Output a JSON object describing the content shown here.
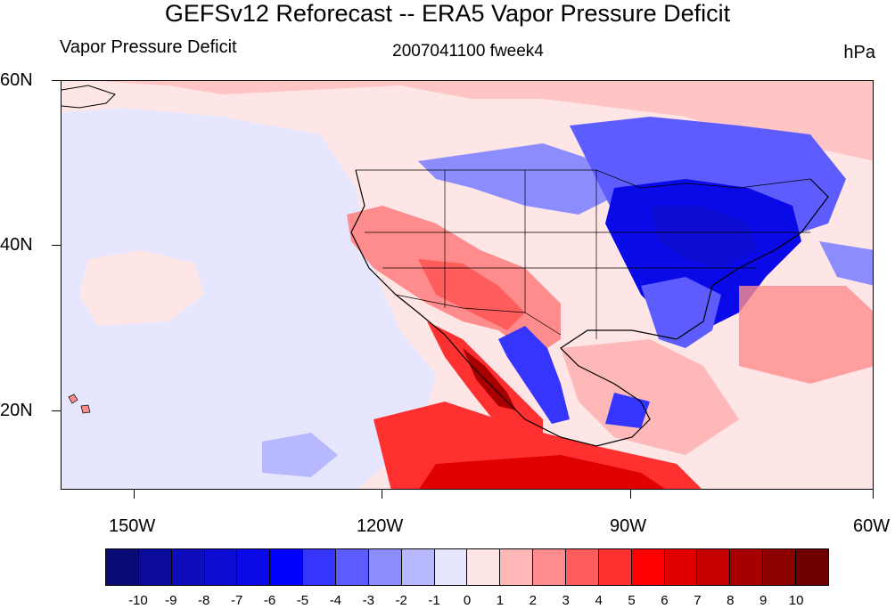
{
  "header": {
    "title": "GEFSv12 Reforecast -- ERA5 Vapor Pressure Deficit",
    "left_label": "Vapor Pressure Deficit",
    "center_label": "2007041100 fweek4",
    "right_label": "hPa"
  },
  "axes": {
    "lat_labels": [
      "60N",
      "40N",
      "20N"
    ],
    "lon_labels": [
      "150W",
      "120W",
      "90W",
      "60W"
    ],
    "lat_values": [
      60,
      40,
      20
    ],
    "lon_values": [
      -150,
      -120,
      -90,
      -60
    ]
  },
  "colorbar": {
    "labels": [
      "-10",
      "-9",
      "-8",
      "-7",
      "-6",
      "-5",
      "-4",
      "-3",
      "-2",
      "-1",
      "0",
      "1",
      "2",
      "3",
      "4",
      "5",
      "6",
      "7",
      "8",
      "9",
      "10"
    ],
    "colors": [
      "#0a0a75",
      "#0c0c9a",
      "#0d0dbb",
      "#0c0cd3",
      "#0a0ae8",
      "#0000ff",
      "#3535ff",
      "#5c5cff",
      "#8c8cff",
      "#b8b8ff",
      "#e6e6ff",
      "#ffe6e6",
      "#ffb8b8",
      "#ff8c8c",
      "#ff5c5c",
      "#ff3030",
      "#ff0000",
      "#e00000",
      "#c40000",
      "#a80000",
      "#8c0000",
      "#700000"
    ]
  },
  "map_colors": {
    "ocean_background": "#ffe6e6",
    "light_blue": "#e6e6ff",
    "coastline": "#000000"
  }
}
